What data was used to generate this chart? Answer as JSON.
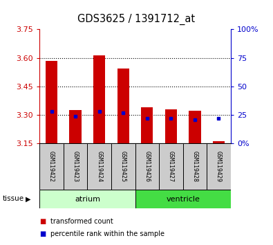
{
  "title": "GDS3625 / 1391712_at",
  "samples": [
    "GSM119422",
    "GSM119423",
    "GSM119424",
    "GSM119425",
    "GSM119426",
    "GSM119427",
    "GSM119428",
    "GSM119429"
  ],
  "red_values": [
    3.585,
    3.325,
    3.615,
    3.545,
    3.34,
    3.33,
    3.32,
    3.16
  ],
  "blue_values_pct": [
    28,
    24,
    28,
    27,
    22,
    22,
    21,
    22
  ],
  "ymin": 3.15,
  "ymax": 3.75,
  "yticks": [
    3.15,
    3.3,
    3.45,
    3.6,
    3.75
  ],
  "gridlines": [
    3.3,
    3.45,
    3.6
  ],
  "tissue_groups": [
    {
      "label": "atrium",
      "start": 0,
      "end": 4,
      "color": "#ccffcc"
    },
    {
      "label": "ventricle",
      "start": 4,
      "end": 8,
      "color": "#44dd44"
    }
  ],
  "bar_color": "#cc0000",
  "dot_color": "#0000cc",
  "bar_width": 0.5,
  "tick_color_left": "#cc0000",
  "tick_color_right": "#0000cc",
  "legend_red": "transformed count",
  "legend_blue": "percentile rank within the sample",
  "tissue_label": "tissue",
  "background_color": "#ffffff",
  "plot_bg_color": "#ffffff",
  "sample_bg_color": "#cccccc"
}
